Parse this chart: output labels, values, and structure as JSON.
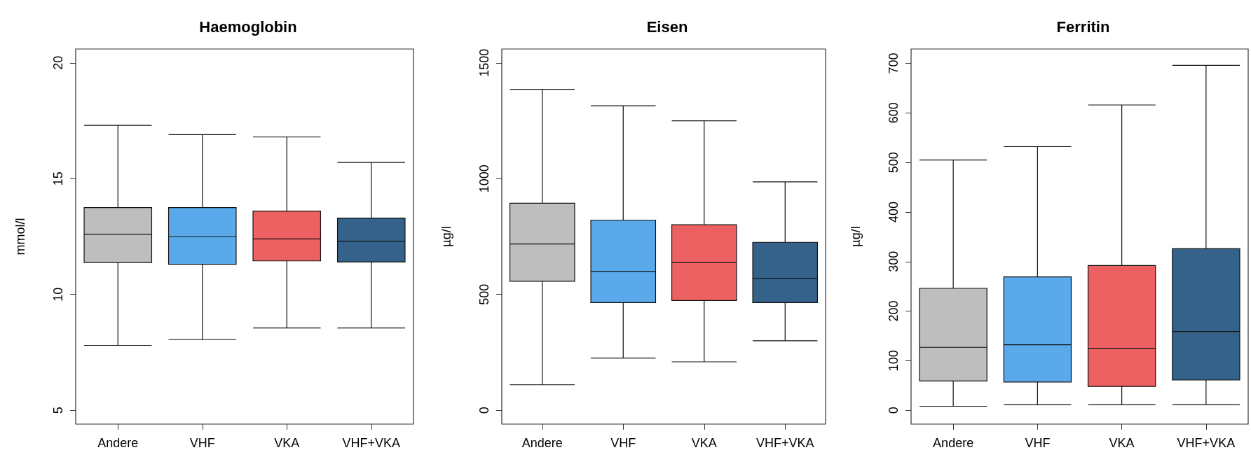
{
  "chart_data": [
    {
      "type": "box",
      "title": "Haemoglobin",
      "ylabel": "mmol/l",
      "categories": [
        "Andere",
        "VHF",
        "VKA",
        "VHF+VKA"
      ],
      "colors": [
        "#bebebe",
        "#5aaaeb",
        "#ee6163",
        "#35628a"
      ],
      "ylim": [
        4.4,
        20.6
      ],
      "yticks": [
        5,
        10,
        15,
        20
      ],
      "grid": false,
      "boxes": [
        {
          "low": 7.8,
          "q1": 11.38,
          "median": 12.6,
          "q3": 13.75,
          "high": 17.3
        },
        {
          "low": 8.05,
          "q1": 11.3,
          "median": 12.5,
          "q3": 13.75,
          "high": 16.9
        },
        {
          "low": 8.55,
          "q1": 11.45,
          "median": 12.4,
          "q3": 13.6,
          "high": 16.8
        },
        {
          "low": 8.55,
          "q1": 11.4,
          "median": 12.3,
          "q3": 13.3,
          "high": 15.7
        }
      ]
    },
    {
      "type": "box",
      "title": "Eisen",
      "ylabel": "µg/l",
      "categories": [
        "Andere",
        "VHF",
        "VKA",
        "VHF+VKA"
      ],
      "colors": [
        "#bebebe",
        "#5aaaeb",
        "#ee6163",
        "#35628a"
      ],
      "ylim": [
        -60,
        1560
      ],
      "yticks": [
        0,
        500,
        1000,
        1500
      ],
      "grid": false,
      "boxes": [
        {
          "low": 110,
          "q1": 557,
          "median": 718,
          "q3": 894,
          "high": 1386
        },
        {
          "low": 225,
          "q1": 465,
          "median": 599,
          "q3": 821,
          "high": 1315
        },
        {
          "low": 209,
          "q1": 474,
          "median": 638,
          "q3": 801,
          "high": 1250
        },
        {
          "low": 300,
          "q1": 465,
          "median": 570,
          "q3": 725,
          "high": 986
        }
      ]
    },
    {
      "type": "box",
      "title": "Ferritin",
      "ylabel": "µg/l",
      "categories": [
        "Andere",
        "VHF",
        "VKA",
        "VHF+VKA"
      ],
      "colors": [
        "#bebebe",
        "#5aaaeb",
        "#ee6163",
        "#35628a"
      ],
      "ylim": [
        -28,
        729
      ],
      "yticks": [
        0,
        100,
        200,
        300,
        400,
        500,
        600,
        700
      ],
      "grid": false,
      "boxes": [
        {
          "low": 8,
          "q1": 59,
          "median": 127,
          "q3": 246,
          "high": 505
        },
        {
          "low": 11,
          "q1": 57,
          "median": 132,
          "q3": 269,
          "high": 532
        },
        {
          "low": 11,
          "q1": 48,
          "median": 125,
          "q3": 292,
          "high": 616
        },
        {
          "low": 11,
          "q1": 61,
          "median": 159,
          "q3": 326,
          "high": 696
        }
      ]
    }
  ]
}
